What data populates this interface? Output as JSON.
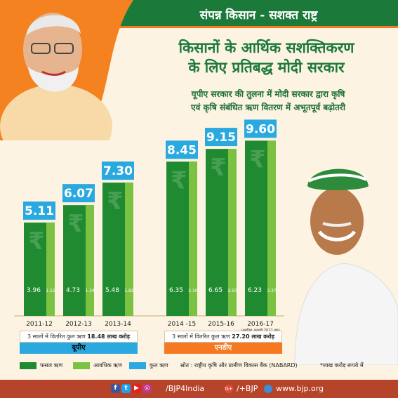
{
  "header": {
    "title": "संपन्न किसान - सशक्त राष्ट्र",
    "accent": "#1b7a3a",
    "stripe": "#f47920"
  },
  "headline": {
    "line1": "किसानों के आर्थिक सशक्तिकरण",
    "line2": "के लिए प्रतिबद्ध मोदी सरकार",
    "sub1": "यूपीए सरकार की तुलना में मोदी सरकार द्वारा कृषि",
    "sub2": "एवं कृषि संबंधित ऋण वितरण में अभूतपूर्व बढ़ोतरी"
  },
  "chart_data": {
    "type": "bar",
    "categories": [
      "2011-12",
      "2012-13",
      "2013-14",
      "2014 -15",
      "2015-16",
      "2016-17"
    ],
    "category_notes": [
      "",
      "",
      "",
      "",
      "",
      "(अनंतिम, फरवरी 2017 तक)"
    ],
    "series": [
      {
        "name": "फसल ऋण",
        "values": [
          3.96,
          4.73,
          5.48,
          6.35,
          6.65,
          6.23
        ],
        "color": "#1f8a2f"
      },
      {
        "name": "आवधिक ऋण",
        "values": [
          1.15,
          1.34,
          1.82,
          2.1,
          2.5,
          3.37
        ],
        "color": "#7cc242"
      }
    ],
    "totals": {
      "name": "कुल ऋण",
      "labels": [
        "5.11",
        "6.07",
        "7.30",
        "8.45",
        "9.15",
        "9.60"
      ],
      "values": [
        5.11,
        6.07,
        7.3,
        8.45,
        9.15,
        9.6
      ],
      "color": "#29a9e0"
    },
    "groups": [
      {
        "label": "यूपीए",
        "categories": [
          "2011-12",
          "2012-13",
          "2013-14"
        ],
        "color": "#29a9e0"
      },
      {
        "label": "एनडीए",
        "categories": [
          "2014 -15",
          "2015-16",
          "2016-17"
        ],
        "color": "#f47920"
      }
    ],
    "value_labels": {
      "crop": [
        "3.96",
        "4.73",
        "5.48",
        "6.35",
        "6.65",
        "6.23"
      ],
      "term": [
        "1.15",
        "1.34",
        "1.82",
        "2.10",
        "2.50",
        "3.37"
      ]
    },
    "grid": false,
    "legend_position": "bottom-left",
    "unit_note": "*लाख करोड़ रूपये में"
  },
  "summary": {
    "upa": {
      "prefix": "3 सालों में वितरित कुल ऋण ",
      "amount": "18.48 लाख करोड़"
    },
    "nda": {
      "prefix": "3 सालों में वितरित कुल ऋण ",
      "amount": "27.20 लाख करोड़"
    }
  },
  "legend": {
    "crop": "फसल ऋण",
    "term": "आवधिक ऋण",
    "total": "कुल ऋण",
    "source": "स्रोत : राष्ट्रीय कृषि और ग्रामीण विकास बैंक (NABARD)",
    "unit_note": "*लाख करोड़ रूपये में"
  },
  "footer": {
    "handle": "/BJP4India",
    "gplus": "/+BJP",
    "website": "www.bjp.org",
    "social_icons": [
      "facebook-icon",
      "twitter-icon",
      "youtube-icon",
      "instagram-icon"
    ]
  }
}
